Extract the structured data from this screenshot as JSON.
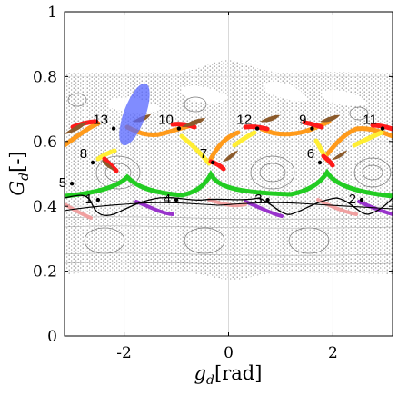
{
  "chart_data": {
    "type": "scatter",
    "title": "",
    "xlabel": "g_d [rad]",
    "ylabel": "G_d [-]",
    "xlabel_parts": {
      "main": "g",
      "sub": "d",
      "unit": "[rad]"
    },
    "ylabel_parts": {
      "main": "G",
      "sub": "d",
      "unit": "[-]"
    },
    "xlim": [
      -3.1416,
      3.1416
    ],
    "ylim": [
      0,
      1
    ],
    "x_ticks": [
      -2,
      0,
      2
    ],
    "y_ticks": [
      0,
      0.2,
      0.4,
      0.6,
      0.8,
      1
    ],
    "x_tick_labels": [
      "-2",
      "0",
      "2"
    ],
    "y_tick_labels": [
      "0",
      "0.2",
      "0.4",
      "0.6",
      "0.8",
      "1"
    ],
    "grid": true,
    "colors": {
      "poincare_points": "#8a8a8a",
      "manifold_red": "#ff1a1a",
      "manifold_orange": "#ff9a1a",
      "manifold_yellow": "#ffee33",
      "manifold_green": "#22cc22",
      "manifold_purple": "#9933cc",
      "manifold_pink": "#f0a0a0",
      "manifold_brown": "#8b5a2b",
      "blue_region": "#5566ff",
      "orbit_line": "#000000"
    },
    "labeled_points": [
      {
        "label": "1",
        "x": -2.5,
        "y": 0.42
      },
      {
        "label": "2",
        "x": 2.55,
        "y": 0.42
      },
      {
        "label": "3",
        "x": 0.75,
        "y": 0.42
      },
      {
        "label": "4",
        "x": -1.0,
        "y": 0.42
      },
      {
        "label": "5",
        "x": -3.0,
        "y": 0.47
      },
      {
        "label": "6",
        "x": 1.75,
        "y": 0.535
      },
      {
        "label": "7",
        "x": -0.3,
        "y": 0.535
      },
      {
        "label": "8",
        "x": -2.6,
        "y": 0.535
      },
      {
        "label": "9",
        "x": 1.6,
        "y": 0.64
      },
      {
        "label": "10",
        "x": -0.95,
        "y": 0.64
      },
      {
        "label": "11",
        "x": 2.95,
        "y": 0.64
      },
      {
        "label": "12",
        "x": 0.55,
        "y": 0.64
      },
      {
        "label": "13",
        "x": -2.2,
        "y": 0.64
      }
    ]
  }
}
